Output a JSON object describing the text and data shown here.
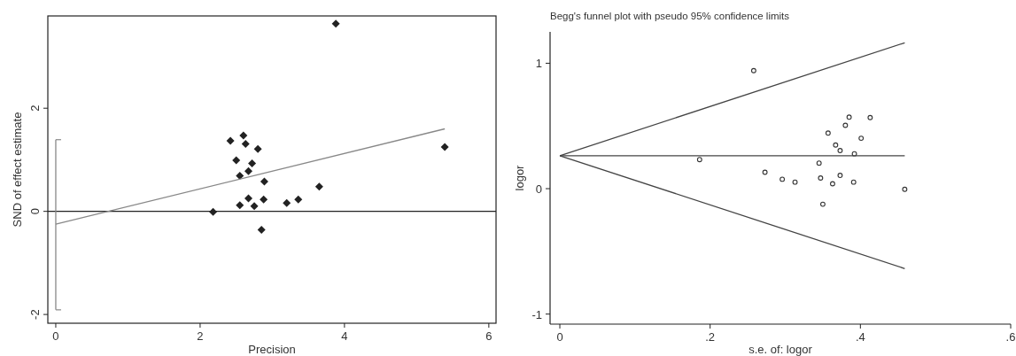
{
  "chart_data": [
    {
      "type": "scatter",
      "xlabel": "Precision",
      "ylabel": "SND of effect estimate",
      "xlim": [
        -0.11,
        6.1
      ],
      "ylim": [
        -2.17,
        3.79
      ],
      "xticks": [
        0,
        2,
        4,
        6
      ],
      "yticks": [
        -2,
        0,
        2
      ],
      "grid": false,
      "ref_lines": [
        {
          "axis": "y",
          "value": 0,
          "color": "#222222"
        }
      ],
      "series": [
        {
          "marker": "diamond",
          "color": "#222222",
          "x": [
            3.88,
            2.42,
            2.6,
            2.63,
            2.8,
            2.5,
            2.72,
            2.67,
            2.55,
            2.89,
            3.65,
            5.39,
            2.67,
            2.88,
            2.55,
            2.75,
            3.2,
            3.36,
            2.18,
            2.85
          ],
          "values": [
            3.64,
            1.37,
            1.47,
            1.31,
            1.21,
            0.99,
            0.93,
            0.78,
            0.69,
            0.58,
            0.48,
            1.25,
            0.25,
            0.23,
            0.12,
            0.1,
            0.16,
            0.23,
            -0.01,
            -0.36
          ]
        },
        {
          "type": "line",
          "color": "#888888",
          "x": [
            0,
            5.39
          ],
          "values": [
            -0.25,
            1.6
          ]
        },
        {
          "type": "line",
          "color": "#888888",
          "x": [
            0,
            0
          ],
          "values": [
            -1.91,
            1.39
          ]
        }
      ]
    },
    {
      "type": "scatter",
      "title": "Begg's funnel plot with pseudo 95% confidence limits",
      "xlabel": "s.e. of: logor",
      "ylabel": "logor",
      "xlim": [
        -0.013,
        0.6
      ],
      "ylim": [
        -1.08,
        1.25
      ],
      "xticks": [
        0,
        {
          "value": 0.2,
          "label": ".2"
        },
        {
          "value": 0.4,
          "label": ".4"
        },
        {
          "value": 0.6,
          "label": ".6"
        }
      ],
      "yticks": [
        -1,
        0,
        1
      ],
      "grid": false,
      "series": [
        {
          "marker": "circle",
          "color": "#333333",
          "x": [
            0.258,
            0.186,
            0.273,
            0.296,
            0.313,
            0.345,
            0.347,
            0.35,
            0.357,
            0.363,
            0.367,
            0.373,
            0.373,
            0.38,
            0.385,
            0.391,
            0.392,
            0.401,
            0.413,
            0.459
          ],
          "values": [
            0.941,
            0.232,
            0.131,
            0.075,
            0.052,
            0.204,
            0.085,
            -0.124,
            0.443,
            0.039,
            0.348,
            0.304,
            0.106,
            0.505,
            0.57,
            0.052,
            0.278,
            0.402,
            0.567,
            -0.005
          ]
        },
        {
          "type": "line",
          "color": "#444444",
          "x": [
            0,
            0.459
          ],
          "values": [
            0.263,
            0.263
          ]
        },
        {
          "type": "line",
          "color": "#444444",
          "x": [
            0,
            0.459
          ],
          "values": [
            0.263,
            1.163
          ]
        },
        {
          "type": "line",
          "color": "#444444",
          "x": [
            0,
            0.459
          ],
          "values": [
            0.263,
            -0.637
          ]
        }
      ]
    }
  ]
}
